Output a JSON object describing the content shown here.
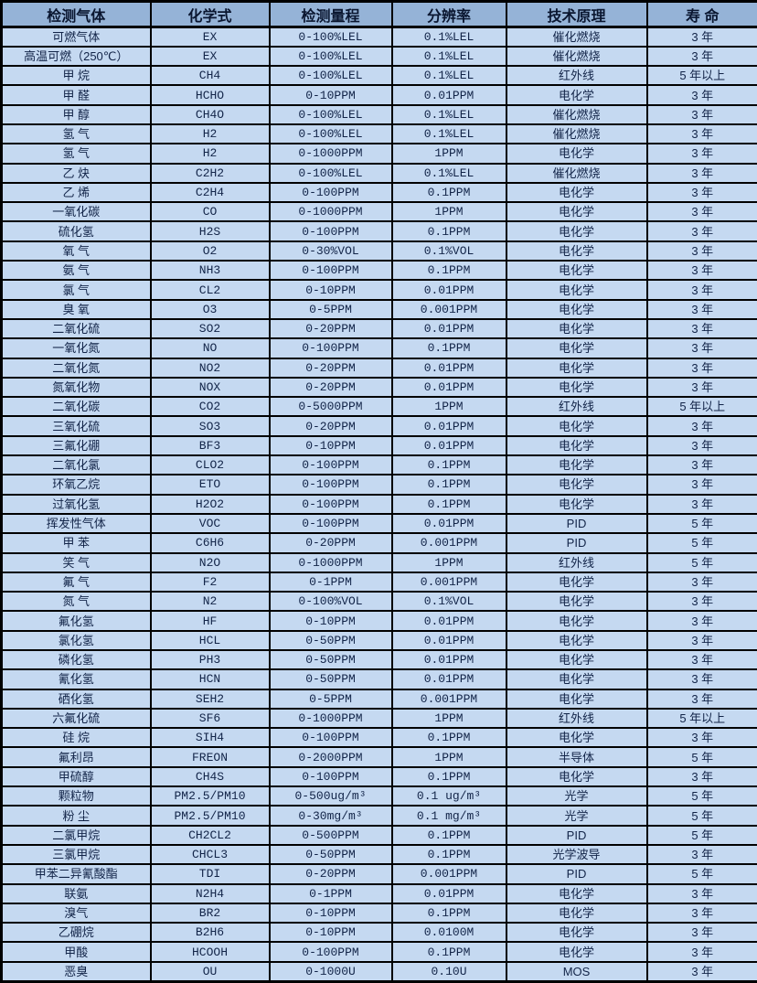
{
  "colors": {
    "header_bg": "#95B3D7",
    "row_bg": "#C5D9F1",
    "border": "#000000",
    "text": "#122448"
  },
  "table": {
    "column_keys": [
      "gas",
      "formula",
      "range",
      "resolution",
      "principle",
      "lifespan"
    ],
    "columns": [
      "检测气体",
      "化学式",
      "检测量程",
      "分辨率",
      "技术原理",
      "寿 命"
    ],
    "rows": [
      [
        "可燃气体",
        "EX",
        "0-100%LEL",
        "0.1%LEL",
        "催化燃烧",
        "3 年"
      ],
      [
        "高温可燃（250℃）",
        "EX",
        "0-100%LEL",
        "0.1%LEL",
        "催化燃烧",
        "3 年"
      ],
      [
        "甲 烷",
        "CH4",
        "0-100%LEL",
        "0.1%LEL",
        "红外线",
        "5 年以上"
      ],
      [
        "甲 醛",
        "HCHO",
        "0-10PPM",
        "0.01PPM",
        "电化学",
        "3 年"
      ],
      [
        "甲 醇",
        "CH4O",
        "0-100%LEL",
        "0.1%LEL",
        "催化燃烧",
        "3 年"
      ],
      [
        "氢 气",
        "H2",
        "0-100%LEL",
        "0.1%LEL",
        "催化燃烧",
        "3 年"
      ],
      [
        "氢 气",
        "H2",
        "0-1000PPM",
        "1PPM",
        "电化学",
        "3 年"
      ],
      [
        "乙 炔",
        "C2H2",
        "0-100%LEL",
        "0.1%LEL",
        "催化燃烧",
        "3 年"
      ],
      [
        "乙 烯",
        "C2H4",
        "0-100PPM",
        "0.1PPM",
        "电化学",
        "3 年"
      ],
      [
        "一氧化碳",
        "CO",
        "0-1000PPM",
        "1PPM",
        "电化学",
        "3 年"
      ],
      [
        "硫化氢",
        "H2S",
        "0-100PPM",
        "0.1PPM",
        "电化学",
        "3 年"
      ],
      [
        "氧 气",
        "O2",
        "0-30%VOL",
        "0.1%VOL",
        "电化学",
        "3 年"
      ],
      [
        "氨 气",
        "NH3",
        "0-100PPM",
        "0.1PPM",
        "电化学",
        "3 年"
      ],
      [
        "氯 气",
        "CL2",
        "0-10PPM",
        "0.01PPM",
        "电化学",
        "3 年"
      ],
      [
        "臭 氧",
        "O3",
        "0-5PPM",
        "0.001PPM",
        "电化学",
        "3 年"
      ],
      [
        "二氧化硫",
        "SO2",
        "0-20PPM",
        "0.01PPM",
        "电化学",
        "3 年"
      ],
      [
        "一氧化氮",
        "NO",
        "0-100PPM",
        "0.1PPM",
        "电化学",
        "3 年"
      ],
      [
        "二氧化氮",
        "NO2",
        "0-20PPM",
        "0.01PPM",
        "电化学",
        "3 年"
      ],
      [
        "氮氧化物",
        "NOX",
        "0-20PPM",
        "0.01PPM",
        "电化学",
        "3 年"
      ],
      [
        "二氧化碳",
        "CO2",
        "0-5000PPM",
        "1PPM",
        "红外线",
        "5 年以上"
      ],
      [
        "三氧化硫",
        "SO3",
        "0-20PPM",
        "0.01PPM",
        "电化学",
        "3 年"
      ],
      [
        "三氟化硼",
        "BF3",
        "0-10PPM",
        "0.01PPM",
        "电化学",
        "3 年"
      ],
      [
        "二氧化氯",
        "CLO2",
        "0-100PPM",
        "0.1PPM",
        "电化学",
        "3 年"
      ],
      [
        "环氧乙烷",
        "ETO",
        "0-100PPM",
        "0.1PPM",
        "电化学",
        "3 年"
      ],
      [
        "过氧化氢",
        "H2O2",
        "0-100PPM",
        "0.1PPM",
        "电化学",
        "3 年"
      ],
      [
        "挥发性气体",
        "VOC",
        "0-100PPM",
        "0.01PPM",
        "PID",
        "5 年"
      ],
      [
        "甲 苯",
        "C6H6",
        "0-20PPM",
        "0.001PPM",
        "PID",
        "5 年"
      ],
      [
        "笑 气",
        "N2O",
        "0-1000PPM",
        "1PPM",
        "红外线",
        "5 年"
      ],
      [
        "氟 气",
        "F2",
        "0-1PPM",
        "0.001PPM",
        "电化学",
        "3 年"
      ],
      [
        "氮 气",
        "N2",
        "0-100%VOL",
        "0.1%VOL",
        "电化学",
        "3 年"
      ],
      [
        "氟化氢",
        "HF",
        "0-10PPM",
        "0.01PPM",
        "电化学",
        "3 年"
      ],
      [
        "氯化氢",
        "HCL",
        "0-50PPM",
        "0.01PPM",
        "电化学",
        "3 年"
      ],
      [
        "磷化氢",
        "PH3",
        "0-50PPM",
        "0.01PPM",
        "电化学",
        "3 年"
      ],
      [
        "氰化氢",
        "HCN",
        "0-50PPM",
        "0.01PPM",
        "电化学",
        "3 年"
      ],
      [
        "硒化氢",
        "SEH2",
        "0-5PPM",
        "0.001PPM",
        "电化学",
        "3 年"
      ],
      [
        "六氟化硫",
        "SF6",
        "0-1000PPM",
        "1PPM",
        "红外线",
        "5 年以上"
      ],
      [
        "硅 烷",
        "SIH4",
        "0-100PPM",
        "0.1PPM",
        "电化学",
        "3 年"
      ],
      [
        "氟利昂",
        "FREON",
        "0-2000PPM",
        "1PPM",
        "半导体",
        "5 年"
      ],
      [
        "甲硫醇",
        "CH4S",
        "0-100PPM",
        "0.1PPM",
        "电化学",
        "3 年"
      ],
      [
        "颗粒物",
        "PM2.5/PM10",
        "0-500ug/m³",
        "0.1 ug/m³",
        "光学",
        "5 年"
      ],
      [
        "粉 尘",
        "PM2.5/PM10",
        "0-30mg/m³",
        "0.1 mg/m³",
        "光学",
        "5 年"
      ],
      [
        "二氯甲烷",
        "CH2CL2",
        "0-500PPM",
        "0.1PPM",
        "PID",
        "5 年"
      ],
      [
        "三氯甲烷",
        "CHCL3",
        "0-50PPM",
        "0.1PPM",
        "光学波导",
        "3 年"
      ],
      [
        "甲苯二异氰酸酯",
        "TDI",
        "0-20PPM",
        "0.001PPM",
        "PID",
        "5 年"
      ],
      [
        "联氨",
        "N2H4",
        "0-1PPM",
        "0.01PPM",
        "电化学",
        "3 年"
      ],
      [
        "溴气",
        "BR2",
        "0-10PPM",
        "0.1PPM",
        "电化学",
        "3 年"
      ],
      [
        "乙硼烷",
        "B2H6",
        "0-10PPM",
        "0.0100M",
        "电化学",
        "3 年"
      ],
      [
        "甲酸",
        "HCOOH",
        "0-100PPM",
        "0.1PPM",
        "电化学",
        "3 年"
      ],
      [
        "恶臭",
        "OU",
        "0-1000U",
        "0.10U",
        "MOS",
        "3 年"
      ]
    ]
  }
}
